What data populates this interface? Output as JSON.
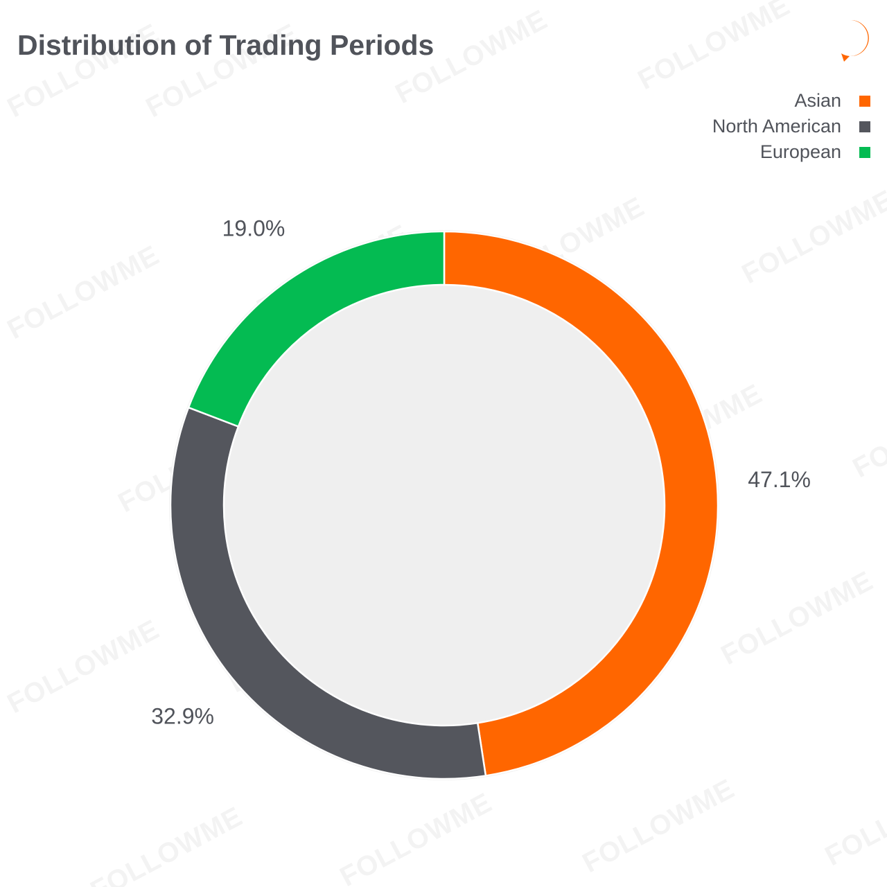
{
  "title": "Distribution of Trading Periods",
  "watermark": "FOLLOWME",
  "brand_logo": {
    "icon": "followme-f-logo-icon",
    "color": "#ff6600"
  },
  "colors": {
    "text": "#50535a",
    "background": "#ffffff"
  },
  "chart_data": {
    "type": "pie",
    "variant": "donut",
    "title": "Distribution of Trading Periods",
    "categories": [
      "Asian",
      "North American",
      "European"
    ],
    "values": [
      47.1,
      32.9,
      19.0
    ],
    "value_labels": [
      "47.1%",
      "32.9%",
      "19.0%"
    ],
    "colors": [
      "#ff6600",
      "#54565d",
      "#04bb52"
    ],
    "start_angle": "12 o'clock",
    "direction": "clockwise",
    "legend": {
      "placement": "top-right",
      "items": [
        {
          "label": "Asian",
          "color": "#ff6600"
        },
        {
          "label": "North American",
          "color": "#54565d"
        },
        {
          "label": "European",
          "color": "#04bb52"
        }
      ]
    }
  }
}
